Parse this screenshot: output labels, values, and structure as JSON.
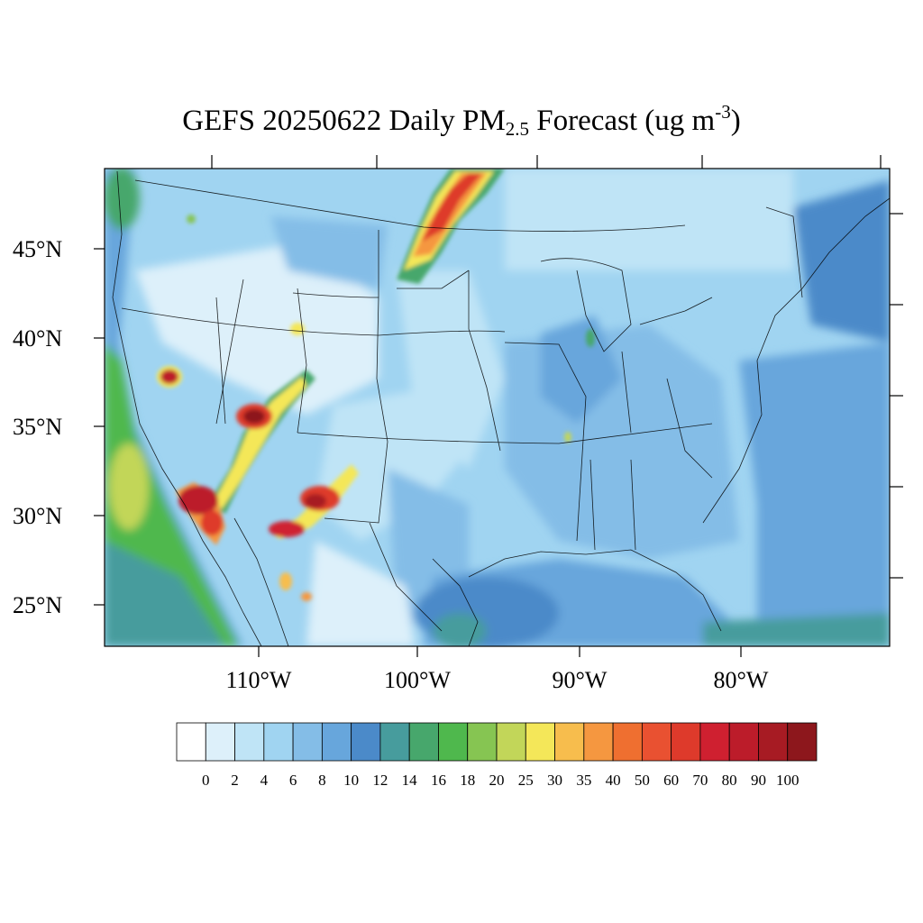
{
  "title": {
    "prefix": "GEFS 20250622 Daily PM",
    "subscript": "2.5",
    "middle": " Forecast (ug m",
    "superscript": "-3",
    "suffix": ")"
  },
  "map": {
    "projection": "Lambert conformal",
    "region": "Contiguous United States",
    "variable": "Daily PM2.5",
    "units": "ug m-3",
    "latitude_labels": [
      "45°N",
      "40°N",
      "35°N",
      "30°N",
      "25°N"
    ],
    "longitude_labels": [
      "110°W",
      "100°W",
      "90°W",
      "80°W"
    ]
  },
  "colorbar": {
    "levels": [
      "0",
      "2",
      "4",
      "6",
      "8",
      "10",
      "12",
      "14",
      "16",
      "18",
      "20",
      "25",
      "30",
      "35",
      "40",
      "50",
      "60",
      "70",
      "80",
      "90",
      "100"
    ],
    "colors": [
      "#ffffff",
      "#ddf0fa",
      "#bfe4f6",
      "#a0d4f1",
      "#84bde7",
      "#67a6dc",
      "#4b8ac9",
      "#479c9d",
      "#47a76c",
      "#4fb84d",
      "#86c552",
      "#c2d659",
      "#f4e759",
      "#f7bd4d",
      "#f59740",
      "#ef6f30",
      "#e95131",
      "#de3a2b",
      "#cf2030",
      "#bc1c2a",
      "#a71b23",
      "#8d171c"
    ]
  },
  "chart_data": {
    "type": "heatmap",
    "title": "GEFS 20250622 Daily PM2.5 Forecast (ug m-3)",
    "contour_levels": [
      0,
      2,
      4,
      6,
      8,
      10,
      12,
      14,
      16,
      18,
      20,
      25,
      30,
      35,
      40,
      50,
      60,
      70,
      80,
      90,
      100
    ],
    "hotspots": [
      {
        "region": "Northern Plains / Canadian border",
        "max_range": "70-100"
      },
      {
        "region": "Central Nevada",
        "max_range": "70-100"
      },
      {
        "region": "Northern Arizona / Utah border",
        "max_range": "70-100"
      },
      {
        "region": "Southern California / Gulf of California",
        "max_range": "70-100"
      },
      {
        "region": "Southern New Mexico",
        "max_range": "60-100"
      },
      {
        "region": "Southern Arizona",
        "max_range": "50-90"
      }
    ]
  }
}
